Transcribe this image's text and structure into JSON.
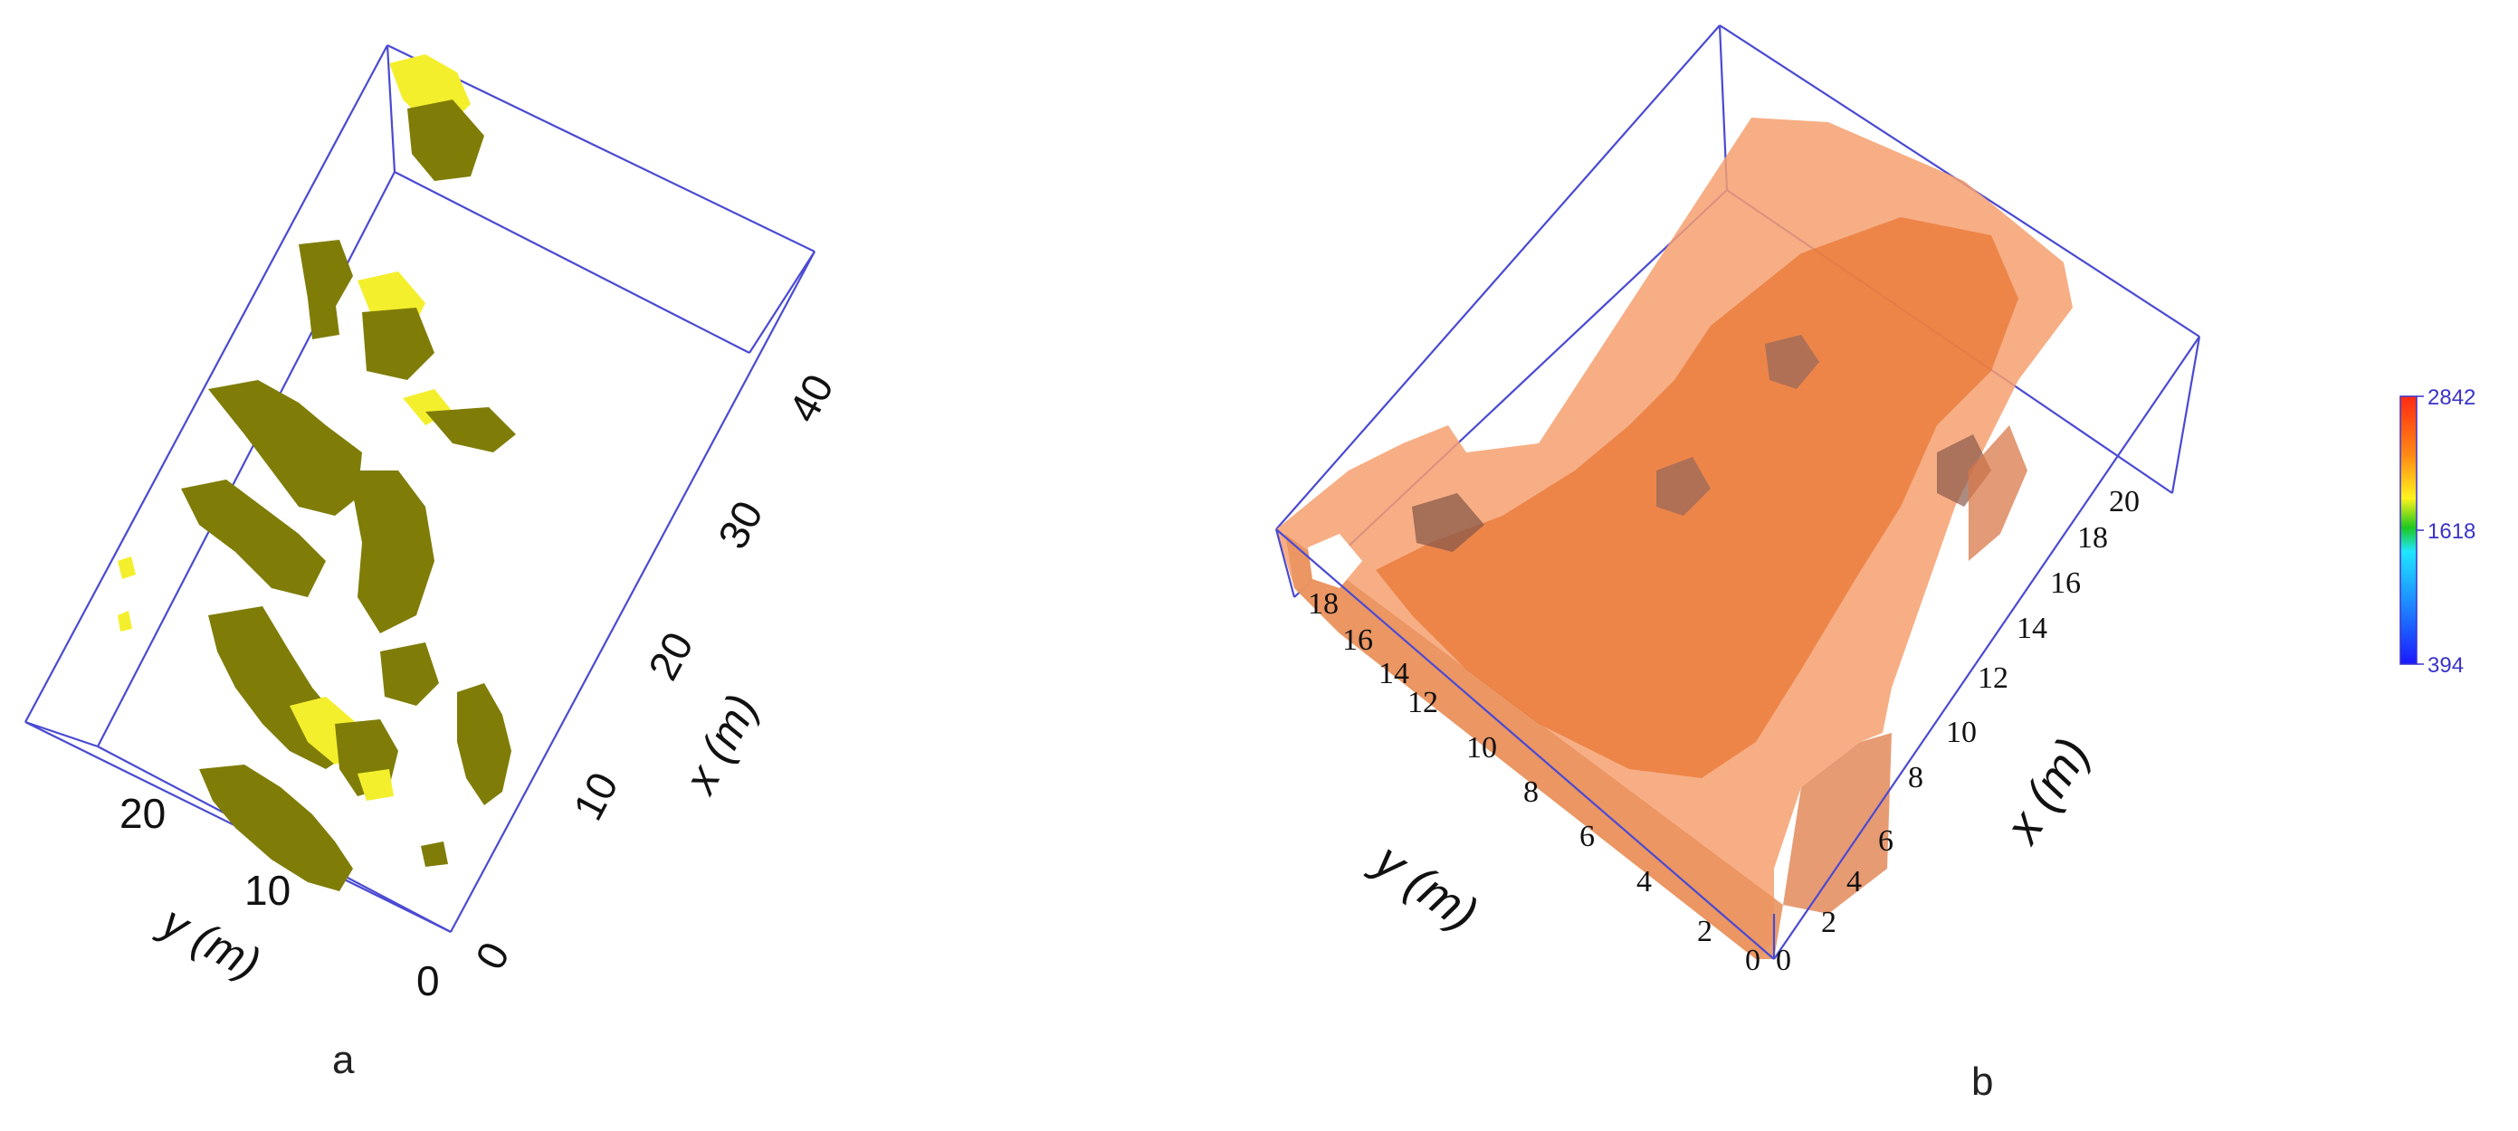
{
  "panels": [
    {
      "label": "a",
      "x_axis": {
        "label": "x (m)",
        "ticks": [
          "0",
          "10",
          "20",
          "30",
          "40"
        ]
      },
      "y_axis": {
        "label": "y (m)",
        "ticks": [
          "0",
          "10",
          "20"
        ]
      },
      "colors": {
        "dark": "#7f7d08",
        "light": "#f4ef2c",
        "frame": "#4a4ad2"
      }
    },
    {
      "label": "b",
      "x_axis": {
        "label": "x (m)",
        "ticks": [
          "0",
          "2",
          "4",
          "6",
          "8",
          "10",
          "12",
          "14",
          "16",
          "18",
          "20"
        ]
      },
      "y_axis": {
        "label": "y (m)",
        "ticks": [
          "0",
          "2",
          "4",
          "6",
          "8",
          "10",
          "12",
          "14",
          "16",
          "18"
        ]
      },
      "colors": {
        "volume": "#f6a070",
        "structure": "#e8742f",
        "frame": "#4a4ad2"
      }
    }
  ],
  "colorbar": {
    "max": "2842",
    "mid": "1618",
    "min": "394",
    "stops": [
      "#ff2a12",
      "#ff8a16",
      "#fff31c",
      "#1ec81e",
      "#1fe6ff",
      "#1e7dff",
      "#1a1aff"
    ]
  }
}
